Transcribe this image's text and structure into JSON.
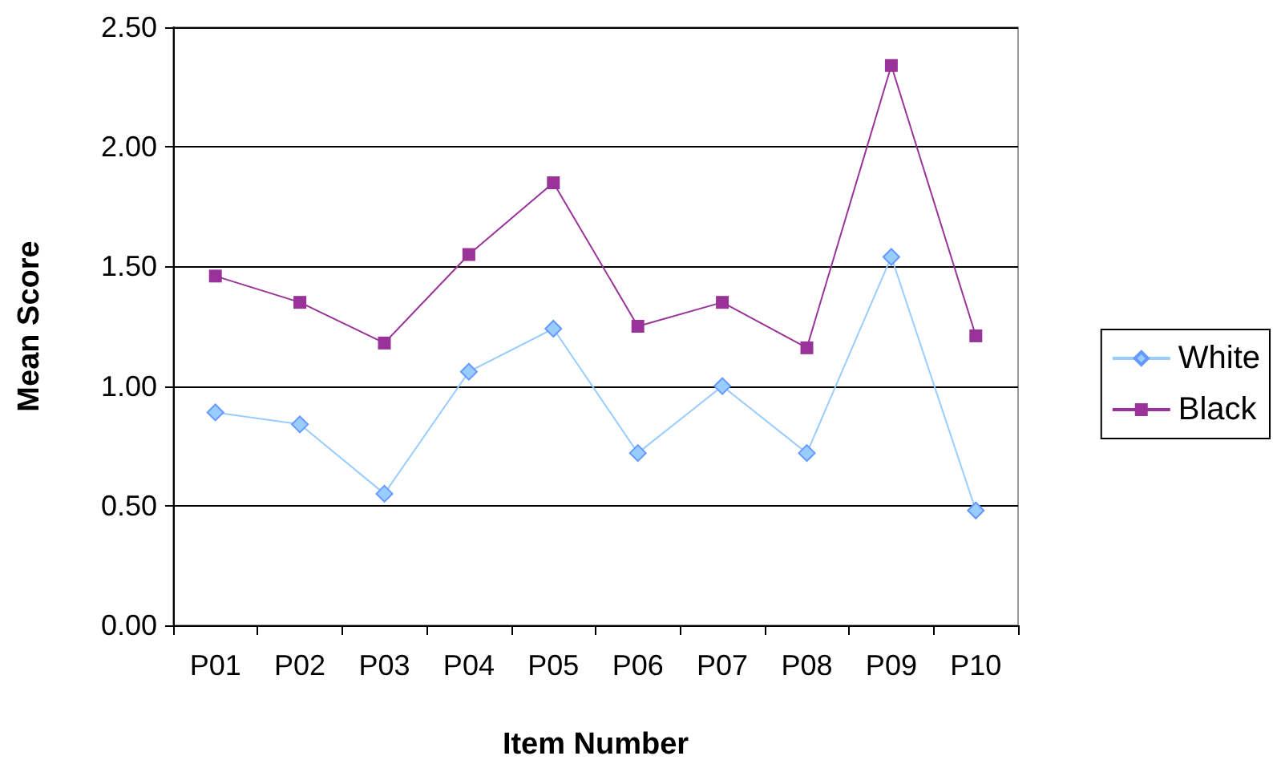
{
  "chart_data": {
    "type": "line",
    "xlabel": "Item Number",
    "ylabel": "Mean Score",
    "categories": [
      "P01",
      "P02",
      "P03",
      "P04",
      "P05",
      "P06",
      "P07",
      "P08",
      "P09",
      "P10"
    ],
    "series": [
      {
        "name": "White",
        "color": "#99ccff",
        "marker": "diamond",
        "values": [
          0.89,
          0.84,
          0.55,
          1.06,
          1.24,
          0.72,
          1.0,
          0.72,
          1.54,
          0.48
        ]
      },
      {
        "name": "Black",
        "color": "#993399",
        "marker": "square",
        "values": [
          1.46,
          1.35,
          1.18,
          1.55,
          1.85,
          1.25,
          1.35,
          1.16,
          2.34,
          1.21
        ]
      }
    ],
    "ylim": [
      0,
      2.5
    ],
    "yticks": [
      {
        "value": 0,
        "label": "0.00"
      },
      {
        "value": 0.5,
        "label": "0.50"
      },
      {
        "value": 1,
        "label": "1.00"
      },
      {
        "value": 1.5,
        "label": "1.50"
      },
      {
        "value": 2,
        "label": "2.00"
      },
      {
        "value": 2.5,
        "label": "2.50"
      }
    ],
    "grid": "y",
    "legend": "right",
    "line_style": "solid"
  }
}
